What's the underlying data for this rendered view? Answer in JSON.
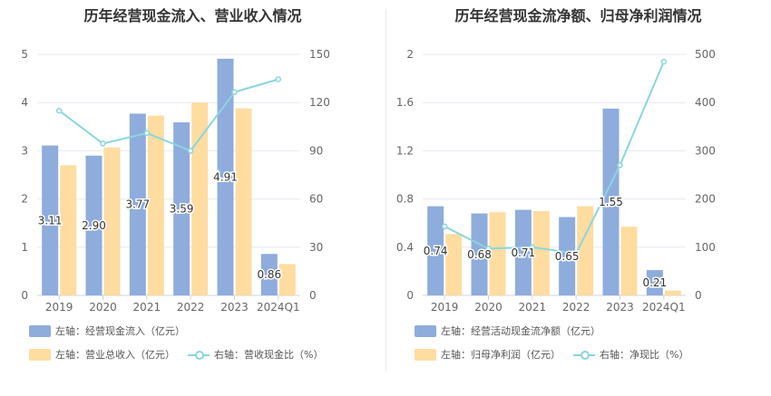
{
  "chart_data": [
    {
      "type": "bar",
      "title": "历年经营现金流入、营业收入情况",
      "categories": [
        "2019",
        "2020",
        "2021",
        "2022",
        "2023",
        "2024Q1"
      ],
      "series": [
        {
          "name": "左轴：经营现金流入（亿元）",
          "axis": "left",
          "kind": "bar",
          "color": "#8eacdc",
          "values": [
            3.11,
            2.9,
            3.77,
            3.59,
            4.91,
            0.86
          ],
          "labels": [
            "3.11",
            "2.90",
            "3.77",
            "3.59",
            "4.91",
            "0.86"
          ]
        },
        {
          "name": "左轴：营业总收入（亿元）",
          "axis": "left",
          "kind": "bar",
          "color": "#ffdca0",
          "values": [
            2.7,
            3.07,
            3.73,
            4.0,
            3.88,
            0.65
          ]
        },
        {
          "name": "右轴：营收现金比（%）",
          "axis": "right",
          "kind": "line",
          "color": "#8ad6de",
          "values": [
            115,
            94.5,
            101,
            90,
            126.5,
            134.5
          ]
        }
      ],
      "left_axis": {
        "min": 0,
        "max": 5,
        "ticks": [
          "0",
          "1",
          "2",
          "3",
          "4",
          "5"
        ]
      },
      "right_axis": {
        "min": 0,
        "max": 150,
        "ticks": [
          "0",
          "30",
          "60",
          "90",
          "120",
          "150"
        ]
      }
    },
    {
      "type": "bar",
      "title": "历年经营现金流净额、归母净利润情况",
      "categories": [
        "2019",
        "2020",
        "2021",
        "2022",
        "2023",
        "2024Q1"
      ],
      "series": [
        {
          "name": "左轴：经营活动现金流净额（亿元）",
          "axis": "left",
          "kind": "bar",
          "color": "#8eacdc",
          "values": [
            0.74,
            0.68,
            0.71,
            0.65,
            1.55,
            0.21
          ],
          "labels": [
            "0.74",
            "0.68",
            "0.71",
            "0.65",
            "1.55",
            "0.21"
          ]
        },
        {
          "name": "左轴：归母净利润（亿元）",
          "axis": "left",
          "kind": "bar",
          "color": "#ffdca0",
          "values": [
            0.51,
            0.69,
            0.7,
            0.74,
            0.57,
            0.04
          ]
        },
        {
          "name": "右轴：净现比（%）",
          "axis": "right",
          "kind": "line",
          "color": "#8ad6de",
          "values": [
            143,
            97,
            100,
            87,
            270,
            485
          ]
        }
      ],
      "left_axis": {
        "min": 0,
        "max": 2,
        "ticks": [
          "0",
          "0.4",
          "0.8",
          "1.2",
          "1.6",
          "2"
        ]
      },
      "right_axis": {
        "min": 0,
        "max": 500,
        "ticks": [
          "0",
          "100",
          "200",
          "300",
          "400",
          "500"
        ]
      }
    }
  ]
}
